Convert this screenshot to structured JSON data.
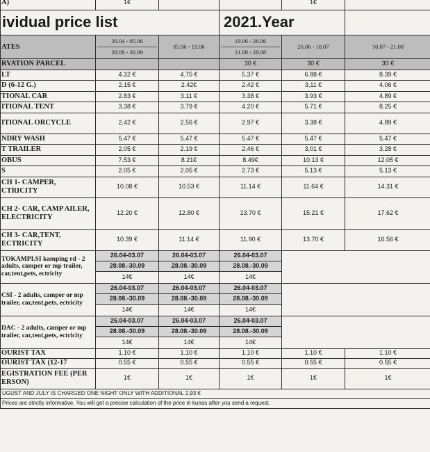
{
  "header": {
    "top_row": [
      "A)",
      "1€",
      "",
      "",
      "1€"
    ],
    "title": "ividual price list",
    "year": "2021.Year"
  },
  "periods": [
    {
      "line1": "26.04 - 05.06",
      "line2": "28.08 - 30.09"
    },
    {
      "line1": "05.06 - 19.06",
      "line2": ""
    },
    {
      "line1": "19.06 - 26.06",
      "line2": "21.08 - 28.08"
    },
    {
      "line1": "26.06 - 10.07",
      "line2": ""
    },
    {
      "line1": "10.07 - 21.08",
      "line2": ""
    }
  ],
  "dates_label": "ATES",
  "rows": [
    {
      "label": "RVATION PARCEL",
      "values": [
        "",
        "",
        "30 €",
        "30 €",
        "30 €"
      ],
      "gray": true
    },
    {
      "label": "LT",
      "values": [
        "4.32 €",
        "4.75 €",
        "5.37 €",
        "6.88 €",
        "8.39 €"
      ]
    },
    {
      "label": "D (6-12 g.)",
      "values": [
        "2.15 €",
        "2.42€",
        "2.42 €",
        "3,11 €",
        "4.06 €"
      ]
    },
    {
      "label": "TIONAL CAR",
      "values": [
        "2.83 €",
        "3.11 €",
        "3.38 €",
        "3.93 €",
        "4.89 €"
      ]
    },
    {
      "label": "ITIONAL TENT",
      "values": [
        "3.38 €",
        "3.79 €",
        "4.20 €",
        "5.71 €",
        "8.25 €"
      ]
    },
    {
      "label": "ITIONAL ORCYCLE",
      "values": [
        "2.42 €",
        "2.56 €",
        "2.97 €",
        "3.38 €",
        "4.89 €"
      ],
      "tall": true
    },
    {
      "label": "NDRY WASH",
      "values": [
        "5.47 €",
        "5.47 €",
        "5.47 €",
        "5.47 €",
        "5.47 €"
      ]
    },
    {
      "label": "T TRAILER",
      "values": [
        "2.05 €",
        "2.19 €",
        "2.46 €",
        "3,01 €",
        "3.28 €"
      ]
    },
    {
      "label": "OBUS",
      "values": [
        "7.53 €",
        "8.21€",
        "8.49€",
        "10.13 €",
        "12.05 €"
      ]
    },
    {
      "label": "S",
      "values": [
        "2.05 €",
        "2.05 €",
        "2.73 €",
        "5.13 €",
        "5.13 €"
      ]
    },
    {
      "label": "CH 1- CAMPER, CTRICITY",
      "values": [
        "10.08 €",
        "10.53 €",
        "11.14 €",
        "11.64 €",
        "14.31 €"
      ],
      "tall": true
    },
    {
      "label": "CH 2- CAR, CAMP AILER, ELECTRICITY",
      "values": [
        "12.20 €",
        "12.80 €",
        "13.70 €",
        "15.21 €",
        "17.62 €"
      ],
      "xtall": true
    },
    {
      "label": "CH 3- CAR,TENT, ECTRICITY",
      "values": [
        "10.39 €",
        "11.14 €",
        "11.90 €",
        "13.70 €",
        "16.56 €"
      ],
      "tall": true
    }
  ],
  "packages": [
    {
      "label": "TOKAMPI.SI kamping rd - 2 adults, camper or mp trailer, car,tent,pets, ectricity",
      "d1": "26.04-03.07",
      "d2": "28.08.-30.09",
      "price": "14€"
    },
    {
      "label": "CSI - 2 adults, camper or mp trailer, car,tent,pets, ectricity",
      "d1": "26.04-03.07",
      "d2": "28.08.-30.09",
      "price": "14€"
    },
    {
      "label": "DAC - 2 adults, camper or mp trailer, car,tent,pets, ectricity",
      "d1": "26.04-03.07",
      "d2": "28.08.-30.09",
      "price": "14€"
    }
  ],
  "tax_rows": [
    {
      "label": "OURIST TAX",
      "values": [
        "1.10 €",
        "1.10 €",
        "1.10 €",
        "1.10 €",
        "1.10 €"
      ]
    },
    {
      "label": "OURIST TAX (12-17",
      "values": [
        "0.55 €",
        "0.55 €",
        "0.55 €",
        "0.55 €",
        "0.55 €"
      ]
    },
    {
      "label": "EGISTRATION FEE (PER ERSON)",
      "values": [
        "1€",
        "1€",
        "1€",
        "1€",
        "1€"
      ]
    }
  ],
  "footnotes": {
    "note1": "UGUST AND JULY IS CHARGED ONE NIGHT ONLY WITH ADDITIONAL 2,93 €",
    "note2": "Prices are strictly informative. You will get a precise calculation of the price in kunas after you send a request."
  }
}
